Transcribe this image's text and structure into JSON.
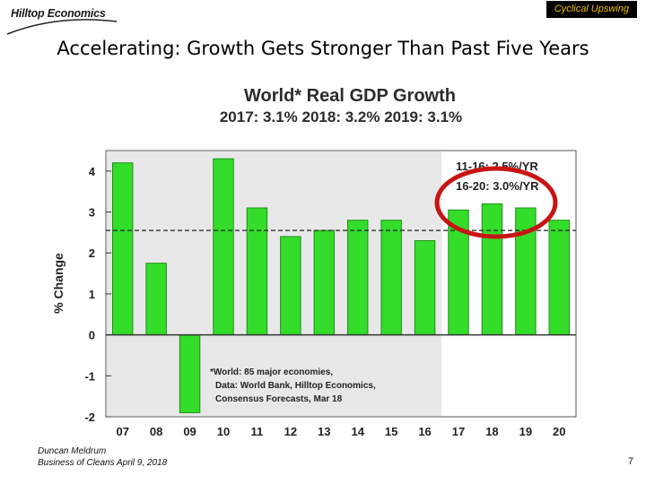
{
  "header": {
    "logo_text": "Hilltop Economics",
    "tag": "Cyclical Upswing",
    "title": "Accelerating: Growth Gets Stronger Than Past Five Years"
  },
  "chart_data": {
    "type": "bar",
    "title": "World* Real GDP Growth",
    "subtitle": "2017: 3.1%   2018: 3.2%   2019: 3.1%",
    "categories": [
      "07",
      "08",
      "09",
      "10",
      "11",
      "12",
      "13",
      "14",
      "15",
      "16",
      "17",
      "18",
      "19",
      "20"
    ],
    "values": [
      4.2,
      1.75,
      -1.9,
      4.3,
      3.1,
      2.4,
      2.55,
      2.8,
      2.8,
      2.3,
      3.05,
      3.2,
      3.1,
      2.8
    ],
    "xlabel": "",
    "ylabel": "% Change",
    "ylim": [
      -2,
      4.5
    ],
    "yticks": [
      "4",
      "3",
      "2",
      "1",
      "0",
      "-1",
      "-2"
    ],
    "shaded_region": "07–16",
    "reference_line": {
      "value": 2.55,
      "style": "dashed"
    },
    "annotations": {
      "avg_past": "11-16: 2.5%/YR",
      "avg_forecast": "16-20: 3.0%/YR",
      "footnote": [
        "*World: 85 major economies,",
        "Data: World Bank, Hilltop Economics,",
        "Consensus Forecasts, Mar 18"
      ]
    },
    "colors": {
      "bar": "#33dd2a",
      "bar_edge": "#1f8f19",
      "shade": "#e8e8e8",
      "circle": "#c81414"
    }
  },
  "footer": {
    "author": "Duncan Meldrum",
    "event": "Business of Cleans April 9, 2018",
    "page": "7"
  }
}
